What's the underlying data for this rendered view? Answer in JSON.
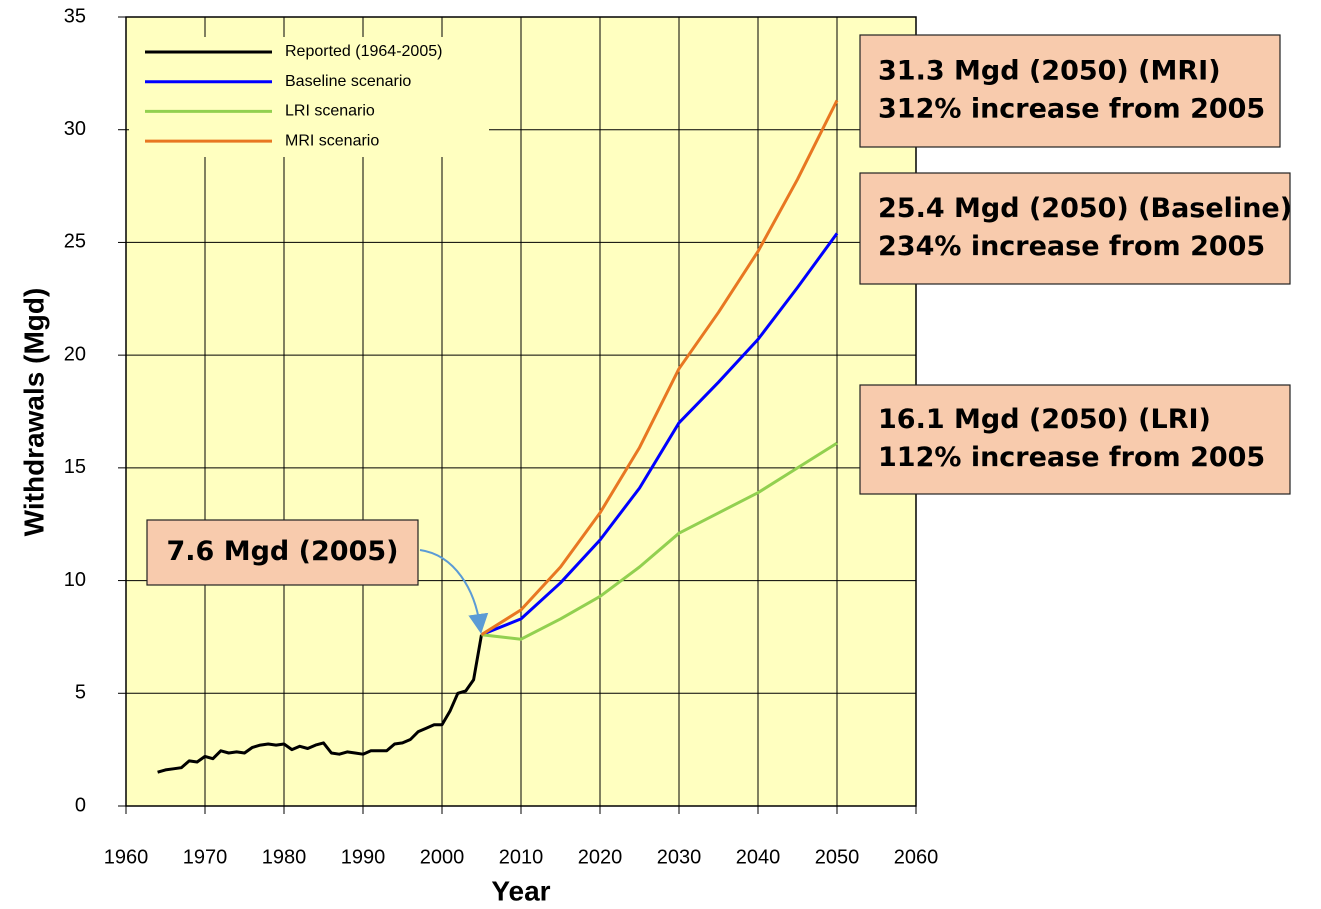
{
  "chart_data": {
    "type": "line",
    "xlabel": "Year",
    "ylabel": "Withdrawals (Mgd)",
    "xlim": [
      1960,
      2060
    ],
    "ylim": [
      0,
      35
    ],
    "xticks": [
      1960,
      1970,
      1980,
      1990,
      2000,
      2010,
      2020,
      2030,
      2040,
      2050,
      2060
    ],
    "yticks": [
      0,
      5,
      10,
      15,
      20,
      25,
      30,
      35
    ],
    "grid": true,
    "legend": "upper left",
    "background": "#ffffc0",
    "series": [
      {
        "name": "Reported (1964-2005)",
        "color": "#000000",
        "x": [
          1964,
          1965,
          1966,
          1967,
          1968,
          1969,
          1970,
          1971,
          1972,
          1973,
          1974,
          1975,
          1976,
          1977,
          1978,
          1979,
          1980,
          1981,
          1982,
          1983,
          1984,
          1985,
          1986,
          1987,
          1988,
          1989,
          1990,
          1991,
          1992,
          1993,
          1994,
          1995,
          1996,
          1997,
          1998,
          1999,
          2000,
          2001,
          2002,
          2003,
          2004,
          2005
        ],
        "values": [
          1.5,
          1.6,
          1.65,
          1.7,
          2.0,
          1.95,
          2.2,
          2.1,
          2.45,
          2.35,
          2.4,
          2.35,
          2.6,
          2.7,
          2.75,
          2.7,
          2.75,
          2.5,
          2.65,
          2.55,
          2.7,
          2.8,
          2.35,
          2.3,
          2.4,
          2.35,
          2.3,
          2.45,
          2.45,
          2.45,
          2.75,
          2.8,
          2.95,
          3.3,
          3.45,
          3.6,
          3.6,
          4.2,
          5.0,
          5.1,
          5.6,
          7.6
        ]
      },
      {
        "name": "Baseline scenario",
        "color": "#0000ff",
        "x": [
          2005,
          2010,
          2015,
          2020,
          2025,
          2030,
          2035,
          2040,
          2045,
          2050
        ],
        "values": [
          7.6,
          8.3,
          9.9,
          11.8,
          14.1,
          17.0,
          18.8,
          20.7,
          23.0,
          25.4
        ]
      },
      {
        "name": "LRI scenario",
        "color": "#92d050",
        "x": [
          2005,
          2010,
          2015,
          2020,
          2025,
          2030,
          2035,
          2040,
          2045,
          2050
        ],
        "values": [
          7.6,
          7.4,
          8.3,
          9.3,
          10.6,
          12.1,
          13.0,
          13.9,
          15.0,
          16.1
        ]
      },
      {
        "name": "MRI scenario",
        "color": "#e87722",
        "x": [
          2005,
          2010,
          2015,
          2020,
          2025,
          2030,
          2035,
          2040,
          2045,
          2050
        ],
        "values": [
          7.6,
          8.7,
          10.6,
          13.0,
          15.9,
          19.4,
          21.9,
          24.6,
          27.8,
          31.3
        ]
      }
    ],
    "annotations": [
      {
        "lines": [
          "31.3 Mgd (2050) (MRI)",
          "312% increase from 2005"
        ]
      },
      {
        "lines": [
          "25.4 Mgd (2050) (Baseline)",
          "234% increase from 2005"
        ]
      },
      {
        "lines": [
          "16.1 Mgd (2050) (LRI)",
          "112% increase from 2005"
        ]
      },
      {
        "lines": [
          "7.6 Mgd (2005)"
        ]
      }
    ]
  }
}
